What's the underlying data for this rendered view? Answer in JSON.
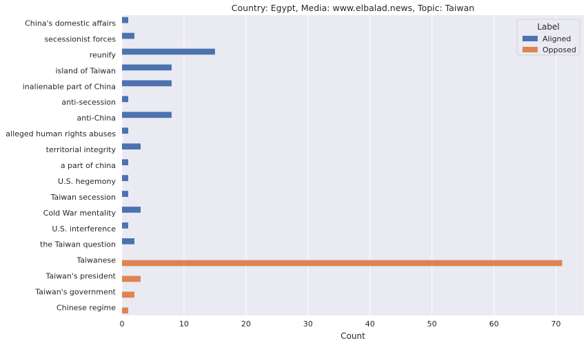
{
  "chart_data": {
    "type": "bar",
    "orientation": "horizontal",
    "title": "Country: Egypt, Media: www.elbalad.news, Topic: Taiwan",
    "xlabel": "Count",
    "ylabel": "",
    "xlim": [
      0,
      74.5
    ],
    "xticks": [
      0,
      10,
      20,
      30,
      40,
      50,
      60,
      70
    ],
    "grid": true,
    "legend_position": "top-right",
    "legend_title": "Label",
    "categories": [
      "China's domestic affairs",
      "secessionist forces",
      "reunify",
      "island of Taiwan",
      "inalienable part of China",
      "anti-secession",
      "anti-China",
      "alleged human rights abuses",
      "territorial integrity",
      "a part of china",
      "U.S. hegemony",
      "Taiwan secession",
      "Cold War mentality",
      "U.S. interference",
      "the Taiwan question",
      "Taiwanese",
      "Taiwan's president",
      "Taiwan's government",
      "Chinese regime"
    ],
    "series": [
      {
        "name": "Aligned",
        "color": "#4c72b0",
        "values": [
          1,
          2,
          15,
          8,
          8,
          1,
          8,
          1,
          3,
          1,
          1,
          1,
          3,
          1,
          2,
          0,
          0,
          0,
          0
        ]
      },
      {
        "name": "Opposed",
        "color": "#dd8452",
        "values": [
          0,
          0,
          0,
          0,
          0,
          0,
          0,
          0,
          0,
          0,
          0,
          0,
          0,
          0,
          0,
          71,
          3,
          2,
          1
        ]
      }
    ],
    "colors": {
      "plot_background": "#eaeaf2",
      "grid": "#ffffff"
    }
  }
}
